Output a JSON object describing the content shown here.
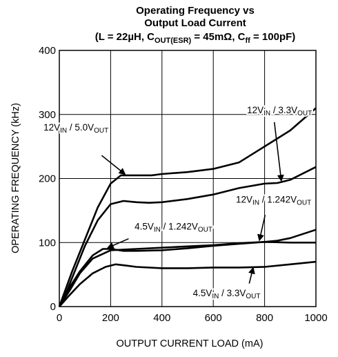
{
  "chart_data": {
    "type": "line",
    "title_lines": [
      "Operating Frequency vs",
      "Output Load Current"
    ],
    "conditions": {
      "prefix": "(L = 22µH, C",
      "cout_sub": "OUT(ESR)",
      "middle": " = 45mΩ, C",
      "cff_sub": "ff",
      "suffix": " = 100pF)"
    },
    "xlabel": "OUTPUT CURRENT LOAD (mA)",
    "ylabel": "OPERATING FREQUENCY  (kHz)",
    "xlim": [
      0,
      1000
    ],
    "ylim": [
      0,
      400
    ],
    "x_ticks": [
      0,
      200,
      400,
      600,
      800,
      1000
    ],
    "y_ticks": [
      0,
      100,
      200,
      300,
      400
    ],
    "grid": true,
    "series": [
      {
        "name": "12VIN / 5.0VOUT",
        "label_parts": [
          {
            "t": "12V"
          },
          {
            "t": "IN",
            "sub": true
          },
          {
            "t": " / 5.0V"
          },
          {
            "t": "OUT",
            "sub": true
          }
        ],
        "points": [
          [
            0,
            0
          ],
          [
            20,
            22
          ],
          [
            50,
            55
          ],
          [
            100,
            105
          ],
          [
            150,
            155
          ],
          [
            200,
            192
          ],
          [
            240,
            205
          ],
          [
            300,
            205
          ],
          [
            360,
            205
          ],
          [
            400,
            207
          ],
          [
            500,
            210
          ],
          [
            600,
            215
          ],
          [
            700,
            225
          ],
          [
            800,
            250
          ],
          [
            900,
            275
          ],
          [
            1000,
            310
          ]
        ]
      },
      {
        "name": "12VIN / 3.3VOUT",
        "label_parts": [
          {
            "t": "12V"
          },
          {
            "t": "IN",
            "sub": true
          },
          {
            "t": " / 3.3V"
          },
          {
            "t": "OUT",
            "sub": true
          }
        ],
        "points": [
          [
            0,
            0
          ],
          [
            30,
            25
          ],
          [
            60,
            55
          ],
          [
            100,
            95
          ],
          [
            150,
            135
          ],
          [
            200,
            160
          ],
          [
            250,
            165
          ],
          [
            300,
            163
          ],
          [
            350,
            162
          ],
          [
            400,
            163
          ],
          [
            500,
            168
          ],
          [
            600,
            175
          ],
          [
            700,
            185
          ],
          [
            800,
            192
          ],
          [
            850,
            193
          ],
          [
            900,
            198
          ],
          [
            1000,
            218
          ]
        ]
      },
      {
        "name": "12VIN / 1.242VOUT",
        "label_parts": [
          {
            "t": "12V"
          },
          {
            "t": "IN",
            "sub": true
          },
          {
            "t": " / 1.242V"
          },
          {
            "t": "OUT",
            "sub": true
          }
        ],
        "points": [
          [
            0,
            0
          ],
          [
            40,
            25
          ],
          [
            80,
            52
          ],
          [
            130,
            75
          ],
          [
            200,
            88
          ],
          [
            300,
            90
          ],
          [
            400,
            92
          ],
          [
            500,
            94
          ],
          [
            600,
            96
          ],
          [
            700,
            99
          ],
          [
            800,
            101
          ],
          [
            850,
            103
          ],
          [
            900,
            107
          ],
          [
            1000,
            120
          ]
        ]
      },
      {
        "name": "4.5VIN / 1.242VOUT",
        "label_parts": [
          {
            "t": "4.5V"
          },
          {
            "t": "IN",
            "sub": true
          },
          {
            "t": " / 1.242V"
          },
          {
            "t": "OUT",
            "sub": true
          }
        ],
        "points": [
          [
            0,
            0
          ],
          [
            40,
            30
          ],
          [
            80,
            55
          ],
          [
            130,
            80
          ],
          [
            170,
            90
          ],
          [
            200,
            90
          ],
          [
            250,
            87
          ],
          [
            300,
            87
          ],
          [
            400,
            88
          ],
          [
            500,
            91
          ],
          [
            600,
            95
          ],
          [
            700,
            98
          ],
          [
            800,
            101
          ],
          [
            900,
            100
          ],
          [
            1000,
            100
          ]
        ]
      },
      {
        "name": "4.5VIN / 3.3VOUT",
        "label_parts": [
          {
            "t": "4.5V"
          },
          {
            "t": "IN",
            "sub": true
          },
          {
            "t": " / 3.3V"
          },
          {
            "t": "OUT",
            "sub": true
          }
        ],
        "points": [
          [
            0,
            0
          ],
          [
            40,
            18
          ],
          [
            80,
            35
          ],
          [
            130,
            52
          ],
          [
            180,
            62
          ],
          [
            220,
            66
          ],
          [
            260,
            64
          ],
          [
            300,
            62
          ],
          [
            400,
            60
          ],
          [
            500,
            60
          ],
          [
            600,
            61
          ],
          [
            700,
            61
          ],
          [
            800,
            62
          ],
          [
            900,
            66
          ],
          [
            1000,
            70
          ]
        ]
      }
    ],
    "annotations": [
      {
        "series": 0,
        "label_at": [
          65,
          275
        ],
        "arrow_from": [
          165,
          236
        ],
        "arrow_to": [
          255,
          207
        ]
      },
      {
        "series": 1,
        "label_at": [
          858,
          302
        ],
        "arrow_from": [
          838,
          288
        ],
        "arrow_to": [
          865,
          197
        ]
      },
      {
        "series": 2,
        "label_at": [
          835,
          162
        ],
        "arrow_from": [
          802,
          143
        ],
        "arrow_to": [
          780,
          104
        ]
      },
      {
        "series": 3,
        "label_at": [
          445,
          120
        ],
        "arrow_from": [
          270,
          106
        ],
        "arrow_to": [
          190,
          92
        ]
      },
      {
        "series": 4,
        "label_at": [
          652,
          16
        ],
        "arrow_from": [
          740,
          36
        ],
        "arrow_to": [
          755,
          60
        ]
      }
    ]
  }
}
